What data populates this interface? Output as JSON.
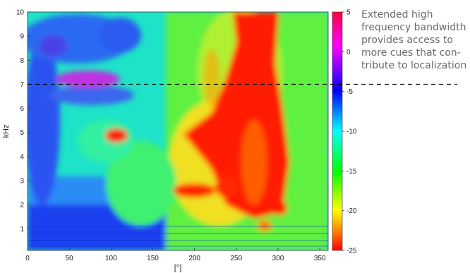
{
  "chart_data": {
    "type": "heatmap",
    "title": "",
    "xlabel": "[°]",
    "ylabel": "kHz",
    "xlim": [
      0,
      360
    ],
    "ylim": [
      0.1,
      10
    ],
    "x_ticks": [
      "0",
      "50",
      "100",
      "150",
      "200",
      "250",
      "300",
      "350"
    ],
    "x_tick_values": [
      0,
      50,
      100,
      150,
      200,
      250,
      300,
      350
    ],
    "y_ticks": [
      "1",
      "2",
      "3",
      "4",
      "5",
      "6",
      "7",
      "8",
      "9",
      "10"
    ],
    "y_tick_values": [
      1,
      2,
      3,
      4,
      5,
      6,
      7,
      8,
      9,
      10
    ],
    "colorbar": {
      "range": [
        -25,
        5
      ],
      "tick_labels": [
        "5",
        "0",
        "-5",
        "-10",
        "-15",
        "-20",
        "-25"
      ],
      "tick_values": [
        5,
        0,
        -5,
        -10,
        -15,
        -20,
        -25
      ],
      "colors": [
        "#7f0000",
        "#ff0000",
        "#ff7f00",
        "#ffff00",
        "#00ff00",
        "#00ffff",
        "#0000ff",
        "#ff00ff"
      ]
    },
    "reference_line": {
      "y": 7,
      "style": "dashed"
    },
    "regions": [
      {
        "x": 280,
        "y": 8.5,
        "value": 4
      },
      {
        "x": 270,
        "y": 5.0,
        "value": 3
      },
      {
        "x": 290,
        "y": 3.8,
        "value": 2
      },
      {
        "x": 300,
        "y": 2.5,
        "value": 1
      },
      {
        "x": 310,
        "y": 1.8,
        "value": 2
      },
      {
        "x": 240,
        "y": 2.7,
        "value": 0
      },
      {
        "x": 110,
        "y": 4.8,
        "value": 0
      },
      {
        "x": 90,
        "y": 6.4,
        "value": -3
      },
      {
        "x": 35,
        "y": 8.8,
        "value": -7
      },
      {
        "x": 140,
        "y": 9.3,
        "value": -6
      },
      {
        "x": 30,
        "y": 1.5,
        "value": -10
      },
      {
        "x": 15,
        "y": 4.0,
        "value": -9
      }
    ]
  },
  "annotation": "Extended high\nfrequency bandwidth\nprovides access to\nmore cues that con-\ntribute to localization"
}
